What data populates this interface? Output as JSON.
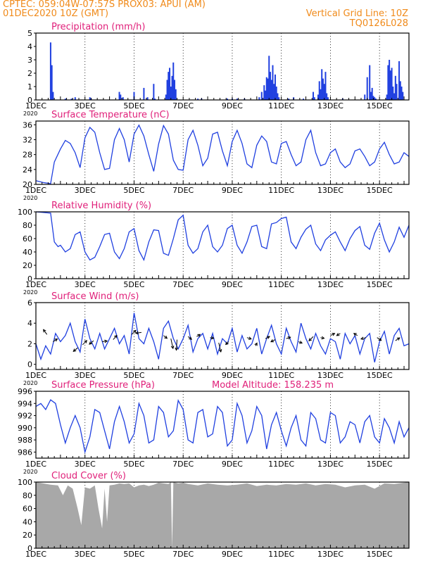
{
  "header": {
    "line1": "CPTEC:   059:04W-07:57S   PROX03: APUI (AM)",
    "line2": "01DEC2020 10Z (GMT)",
    "right1": "Vertical Grid Line: 10Z",
    "right2": "TQ0126L028",
    "altitude": "Model Altitude: 158.235  m"
  },
  "colors": {
    "header": "#f08a1a",
    "title": "#e0207a",
    "series": "#2040e0",
    "cloud": "#a8a8a8",
    "tick_label_year": "#000000"
  },
  "x_axis": {
    "labels": [
      {
        "day": 1,
        "text": "1DEC"
      },
      {
        "day": 3,
        "text": "3DEC"
      },
      {
        "day": 5,
        "text": "5DEC"
      },
      {
        "day": 7,
        "text": "7DEC"
      },
      {
        "day": 9,
        "text": "9DEC"
      },
      {
        "day": 11,
        "text": "11DEC"
      },
      {
        "day": 13,
        "text": "13DEC"
      },
      {
        "day": 15,
        "text": "15DEC"
      }
    ],
    "year_label": "2020",
    "start_day": 1,
    "end_day": 16.2
  },
  "chart_data": [
    {
      "type": "bar",
      "title": "Precipitation (mm/h)",
      "ylim": [
        0,
        5
      ],
      "yticks": [
        0,
        1,
        2,
        3,
        4,
        5
      ],
      "x": [
        1.6,
        1.65,
        1.7,
        2.2,
        2.45,
        2.6,
        3.2,
        3.25,
        4.4,
        4.45,
        4.55,
        5.0,
        5.4,
        5.55,
        5.8,
        5.85,
        6.3,
        6.35,
        6.4,
        6.45,
        6.5,
        6.55,
        6.6,
        6.65,
        6.7,
        7.6,
        7.75,
        8.8,
        9.0,
        9.2,
        9.5,
        10.1,
        10.2,
        10.3,
        10.35,
        10.4,
        10.45,
        10.5,
        10.55,
        10.6,
        10.65,
        10.7,
        10.75,
        10.8,
        10.85,
        10.9,
        11.3,
        11.5,
        11.9,
        12.3,
        12.35,
        12.5,
        12.55,
        12.6,
        12.65,
        12.7,
        12.75,
        12.8,
        12.85,
        12.9,
        13.5,
        14.4,
        14.5,
        14.6,
        14.65,
        14.7,
        14.75,
        14.8,
        14.85,
        15.3,
        15.35,
        15.4,
        15.45,
        15.5,
        15.55,
        15.6,
        15.65,
        15.7,
        15.8,
        15.85,
        15.9,
        15.95
      ],
      "values": [
        4.3,
        2.6,
        0.6,
        0.1,
        0.1,
        0.2,
        0.2,
        0.1,
        0.6,
        0.4,
        0.2,
        0.6,
        0.9,
        0.2,
        1.2,
        0.1,
        0.4,
        1.5,
        2.1,
        2.4,
        1.0,
        1.8,
        2.8,
        1.5,
        0.8,
        0.1,
        0.1,
        0.1,
        0.1,
        0.1,
        0.1,
        0.2,
        0.6,
        1.1,
        0.7,
        1.7,
        1.6,
        3.3,
        2.1,
        1.5,
        2.6,
        1.2,
        1.9,
        1.0,
        0.5,
        0.2,
        0.1,
        0.2,
        0.1,
        0.6,
        0.2,
        0.4,
        1.4,
        0.8,
        2.3,
        1.6,
        1.2,
        2.1,
        0.5,
        0.2,
        0.1,
        0.4,
        1.7,
        2.6,
        0.6,
        0.9,
        0.3,
        0.2,
        0.1,
        0.4,
        2.6,
        3.0,
        2.2,
        2.4,
        1.0,
        0.5,
        1.8,
        1.2,
        2.9,
        1.4,
        1.0,
        0.6
      ]
    },
    {
      "type": "line",
      "title": "Surface Temperature (nC)",
      "ylim": [
        20,
        37
      ],
      "yticks": [
        20,
        24,
        28,
        32,
        36
      ],
      "x": [
        1.0,
        1.3,
        1.6,
        1.75,
        2.0,
        2.2,
        2.4,
        2.6,
        2.8,
        3.0,
        3.2,
        3.4,
        3.6,
        3.8,
        4.0,
        4.2,
        4.4,
        4.6,
        4.8,
        5.0,
        5.2,
        5.4,
        5.6,
        5.8,
        6.0,
        6.2,
        6.4,
        6.6,
        6.8,
        7.0,
        7.2,
        7.4,
        7.6,
        7.8,
        8.0,
        8.2,
        8.4,
        8.6,
        8.8,
        9.0,
        9.2,
        9.4,
        9.6,
        9.8,
        10.0,
        10.2,
        10.4,
        10.6,
        10.8,
        11.0,
        11.2,
        11.4,
        11.6,
        11.8,
        12.0,
        12.2,
        12.4,
        12.6,
        12.8,
        13.0,
        13.2,
        13.4,
        13.6,
        13.8,
        14.0,
        14.2,
        14.4,
        14.6,
        14.8,
        15.0,
        15.2,
        15.4,
        15.6,
        15.8,
        16.0,
        16.2
      ],
      "values": [
        21.0,
        20.5,
        20.2,
        26.0,
        29.5,
        31.8,
        31.0,
        28.5,
        24.5,
        32.5,
        35.3,
        34.0,
        28.5,
        24.0,
        24.3,
        32.0,
        35.0,
        32.0,
        26.0,
        33.5,
        35.9,
        33.0,
        28.0,
        23.5,
        30.8,
        35.8,
        33.5,
        26.5,
        24.0,
        23.8,
        32.0,
        34.5,
        30.5,
        25.0,
        27.0,
        33.5,
        34.0,
        29.0,
        25.0,
        31.5,
        34.5,
        31.0,
        25.5,
        24.5,
        30.5,
        33.0,
        31.5,
        26.0,
        25.5,
        31.0,
        31.5,
        28.0,
        25.0,
        26.0,
        32.0,
        34.5,
        28.5,
        25.0,
        25.5,
        28.5,
        29.5,
        26.0,
        24.5,
        25.5,
        29.0,
        29.5,
        27.5,
        25.0,
        26.0,
        29.5,
        31.3,
        28.0,
        25.5,
        26.0,
        28.5,
        27.5
      ]
    },
    {
      "type": "line",
      "title": "Relative Humidity (%)",
      "ylim": [
        0,
        100
      ],
      "yticks": [
        0,
        20,
        40,
        60,
        80,
        100
      ],
      "x": [
        1.0,
        1.3,
        1.6,
        1.75,
        1.9,
        2.0,
        2.2,
        2.4,
        2.6,
        2.8,
        3.0,
        3.2,
        3.4,
        3.6,
        3.8,
        4.0,
        4.2,
        4.4,
        4.6,
        4.8,
        5.0,
        5.2,
        5.4,
        5.6,
        5.8,
        6.0,
        6.2,
        6.4,
        6.6,
        6.8,
        7.0,
        7.2,
        7.4,
        7.6,
        7.8,
        8.0,
        8.2,
        8.4,
        8.6,
        8.8,
        9.0,
        9.2,
        9.4,
        9.6,
        9.8,
        10.0,
        10.2,
        10.4,
        10.6,
        10.8,
        11.0,
        11.2,
        11.4,
        11.6,
        11.8,
        12.0,
        12.2,
        12.4,
        12.6,
        12.8,
        13.0,
        13.2,
        13.4,
        13.6,
        13.8,
        14.0,
        14.2,
        14.4,
        14.6,
        14.8,
        15.0,
        15.2,
        15.4,
        15.6,
        15.8,
        16.0,
        16.2
      ],
      "values": [
        100,
        99,
        98,
        55,
        48,
        50,
        40,
        45,
        66,
        70,
        40,
        28,
        32,
        48,
        66,
        68,
        40,
        30,
        45,
        70,
        75,
        42,
        28,
        55,
        73,
        72,
        38,
        35,
        60,
        88,
        95,
        50,
        38,
        45,
        70,
        80,
        48,
        40,
        50,
        75,
        80,
        50,
        38,
        55,
        78,
        80,
        48,
        45,
        82,
        84,
        90,
        92,
        55,
        45,
        62,
        74,
        80,
        52,
        42,
        58,
        65,
        70,
        55,
        42,
        60,
        72,
        78,
        50,
        44,
        68,
        83,
        58,
        40,
        55,
        77,
        62,
        80
      ]
    },
    {
      "type": "line",
      "title": "Surface Wind (m/s)",
      "ylim": [
        -0.5,
        6
      ],
      "yticks": [
        0,
        2,
        4,
        6
      ],
      "x": [
        1.0,
        1.2,
        1.4,
        1.6,
        1.8,
        2.0,
        2.2,
        2.4,
        2.6,
        2.8,
        3.0,
        3.2,
        3.4,
        3.6,
        3.8,
        4.0,
        4.2,
        4.4,
        4.6,
        4.8,
        5.0,
        5.2,
        5.4,
        5.6,
        5.8,
        6.0,
        6.2,
        6.4,
        6.6,
        6.8,
        7.0,
        7.2,
        7.4,
        7.6,
        7.8,
        8.0,
        8.2,
        8.4,
        8.6,
        8.8,
        9.0,
        9.2,
        9.4,
        9.6,
        9.8,
        10.0,
        10.2,
        10.4,
        10.6,
        10.8,
        11.0,
        11.2,
        11.4,
        11.6,
        11.8,
        12.0,
        12.2,
        12.4,
        12.6,
        12.8,
        13.0,
        13.2,
        13.4,
        13.6,
        13.8,
        14.0,
        14.2,
        14.4,
        14.6,
        14.8,
        15.0,
        15.2,
        15.4,
        15.6,
        15.8,
        16.0,
        16.2
      ],
      "values": [
        2.0,
        0.5,
        1.8,
        1.0,
        3.0,
        2.2,
        2.8,
        4.0,
        2.2,
        1.2,
        4.4,
        2.5,
        1.5,
        3.0,
        1.5,
        2.5,
        3.5,
        2.0,
        2.8,
        1.0,
        5.0,
        2.5,
        2.0,
        3.5,
        2.2,
        0.5,
        3.5,
        4.2,
        2.5,
        1.5,
        2.5,
        3.8,
        1.2,
        2.5,
        3.0,
        1.5,
        3.0,
        1.0,
        2.5,
        2.0,
        3.5,
        1.2,
        2.8,
        1.5,
        2.0,
        3.5,
        1.0,
        2.5,
        3.8,
        2.0,
        1.0,
        3.5,
        2.2,
        1.2,
        4.0,
        2.5,
        1.5,
        3.0,
        1.8,
        1.0,
        2.5,
        2.2,
        0.5,
        3.0,
        2.0,
        2.8,
        1.0,
        2.5,
        3.0,
        0.2,
        2.2,
        3.2,
        1.0,
        2.8,
        3.5,
        1.8,
        2.0
      ],
      "arrows": [
        [
          1.45,
          2.9,
          -0.5,
          0.7
        ],
        [
          1.7,
          2.2,
          0.6,
          0.4
        ],
        [
          2.7,
          1.6,
          -0.6,
          -0.5
        ],
        [
          2.9,
          1.9,
          0.6,
          0.6
        ],
        [
          3.35,
          2.3,
          -0.6,
          -0.5
        ],
        [
          3.7,
          2.2,
          0.7,
          0.1
        ],
        [
          4.15,
          2.4,
          0.5,
          0.6
        ],
        [
          4.9,
          2.9,
          0.6,
          0.6
        ],
        [
          5.3,
          3.1,
          -0.8,
          -0.1
        ],
        [
          6.2,
          2.8,
          0.5,
          -0.4
        ],
        [
          6.5,
          2.5,
          0.3,
          -1.4
        ],
        [
          6.75,
          2.4,
          -0.1,
          -1.5
        ],
        [
          7.2,
          2.7,
          0.5,
          -0.4
        ],
        [
          7.55,
          2.7,
          0.5,
          0.3
        ],
        [
          8.1,
          2.6,
          0.5,
          -0.1
        ],
        [
          8.45,
          2.1,
          0.3,
          -1.3
        ],
        [
          8.85,
          2.2,
          -0.4,
          -0.4
        ],
        [
          9.6,
          2.6,
          0.6,
          -0.2
        ],
        [
          9.95,
          1.8,
          0.2,
          0.4
        ],
        [
          10.35,
          2.5,
          0.6,
          0.3
        ],
        [
          10.75,
          2.4,
          -0.6,
          -0.3
        ],
        [
          11.2,
          2.5,
          0.6,
          0.2
        ],
        [
          11.7,
          2.2,
          0.5,
          -0.2
        ],
        [
          12.3,
          2.7,
          -0.6,
          -0.6
        ],
        [
          12.6,
          2.6,
          0.5,
          -0.1
        ],
        [
          13.0,
          2.8,
          0.6,
          0.3
        ],
        [
          13.4,
          3.0,
          -0.5,
          -0.3
        ],
        [
          14.1,
          2.8,
          -0.5,
          0.3
        ],
        [
          14.45,
          2.6,
          -0.7,
          -0.2
        ],
        [
          14.9,
          2.6,
          0.6,
          -0.4
        ],
        [
          15.65,
          2.3,
          0.6,
          0.4
        ]
      ]
    },
    {
      "type": "line",
      "title": "Surface Pressure (hPa)",
      "ylim": [
        985,
        996
      ],
      "yticks": [
        986,
        988,
        990,
        992,
        994,
        996
      ],
      "x": [
        1.0,
        1.2,
        1.4,
        1.6,
        1.8,
        2.0,
        2.2,
        2.4,
        2.6,
        2.8,
        3.0,
        3.2,
        3.4,
        3.6,
        3.8,
        4.0,
        4.2,
        4.4,
        4.6,
        4.8,
        5.0,
        5.2,
        5.4,
        5.6,
        5.8,
        6.0,
        6.2,
        6.4,
        6.6,
        6.8,
        7.0,
        7.2,
        7.4,
        7.6,
        7.8,
        8.0,
        8.2,
        8.4,
        8.6,
        8.8,
        9.0,
        9.2,
        9.4,
        9.6,
        9.8,
        10.0,
        10.2,
        10.4,
        10.6,
        10.8,
        11.0,
        11.2,
        11.4,
        11.6,
        11.8,
        12.0,
        12.2,
        12.4,
        12.6,
        12.8,
        13.0,
        13.2,
        13.4,
        13.6,
        13.8,
        14.0,
        14.2,
        14.4,
        14.6,
        14.8,
        15.0,
        15.2,
        15.4,
        15.6,
        15.8,
        16.0,
        16.2
      ],
      "values": [
        993.5,
        994.0,
        993.0,
        994.6,
        994.0,
        990.5,
        987.5,
        990.0,
        992.0,
        990.0,
        986.0,
        988.5,
        993.0,
        992.5,
        989.5,
        986.5,
        991.0,
        993.5,
        991.0,
        987.5,
        989.0,
        994.0,
        992.0,
        987.5,
        988.0,
        993.5,
        992.5,
        988.5,
        989.5,
        994.5,
        993.0,
        988.0,
        987.5,
        992.5,
        993.0,
        988.5,
        989.0,
        993.5,
        992.5,
        987.0,
        988.0,
        994.0,
        992.0,
        987.5,
        989.5,
        993.5,
        992.0,
        986.5,
        990.5,
        992.5,
        989.5,
        987.0,
        990.0,
        992.0,
        988.0,
        987.0,
        992.5,
        991.5,
        988.0,
        987.5,
        992.5,
        992.0,
        987.5,
        988.5,
        991.0,
        990.5,
        987.5,
        991.0,
        992.0,
        988.5,
        987.5,
        991.5,
        990.0,
        987.5,
        991.0,
        988.5,
        990.0
      ]
    },
    {
      "type": "area",
      "title": "Cloud Cover (%)",
      "ylim": [
        0,
        100
      ],
      "yticks": [
        0,
        20,
        40,
        60,
        80,
        100
      ],
      "x": [
        1.0,
        1.3,
        1.6,
        1.9,
        2.1,
        2.3,
        2.5,
        2.7,
        2.85,
        3.0,
        3.2,
        3.4,
        3.55,
        3.7,
        3.8,
        3.9,
        4.0,
        4.2,
        4.4,
        4.6,
        4.8,
        5.0,
        5.2,
        5.4,
        5.6,
        5.8,
        6.0,
        6.2,
        6.4,
        6.5,
        6.55,
        6.6,
        6.8,
        7.0,
        7.2,
        7.6,
        8.0,
        8.4,
        8.8,
        9.2,
        9.6,
        10.0,
        10.4,
        10.8,
        11.2,
        11.6,
        12.0,
        12.4,
        12.8,
        13.2,
        13.6,
        14.0,
        14.4,
        14.8,
        15.2,
        15.6,
        16.0,
        16.2
      ],
      "values": [
        100,
        98,
        96,
        95,
        80,
        95,
        90,
        60,
        35,
        92,
        90,
        95,
        60,
        30,
        90,
        40,
        95,
        96,
        98,
        97,
        98,
        92,
        95,
        96,
        94,
        96,
        99,
        98,
        97,
        100,
        0,
        100,
        98,
        99,
        97,
        95,
        98,
        96,
        95,
        96,
        98,
        94,
        96,
        95,
        97,
        96,
        98,
        95,
        97,
        96,
        92,
        95,
        96,
        90,
        98,
        97,
        99,
        100
      ]
    }
  ]
}
